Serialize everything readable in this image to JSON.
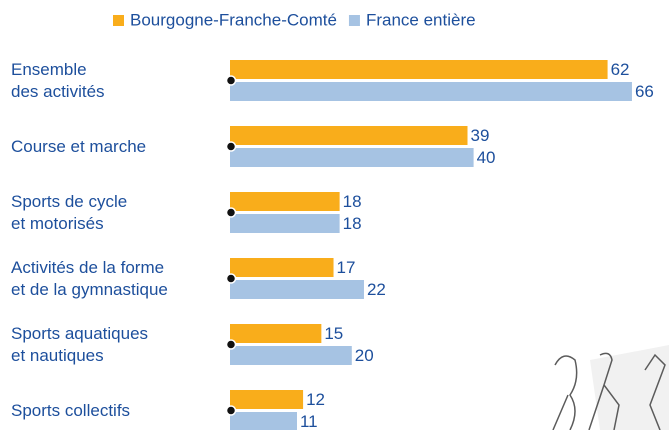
{
  "chart_data": {
    "type": "bar",
    "orientation": "horizontal",
    "categories": [
      "Ensemble\ndes activités",
      "Course et marche",
      "Sports de cycle\net motorisés",
      "Activités de la forme\net de la gymnastique",
      "Sports aquatiques\net nautiques",
      "Sports collectifs"
    ],
    "series": [
      {
        "name": "Bourgogne-Franche-Comté",
        "color": "#f9ad1b",
        "values": [
          62,
          39,
          18,
          17,
          15,
          12
        ]
      },
      {
        "name": "France entière",
        "color": "#a6c3e3",
        "values": [
          66,
          40,
          18,
          22,
          20,
          11
        ]
      }
    ]
  }
}
